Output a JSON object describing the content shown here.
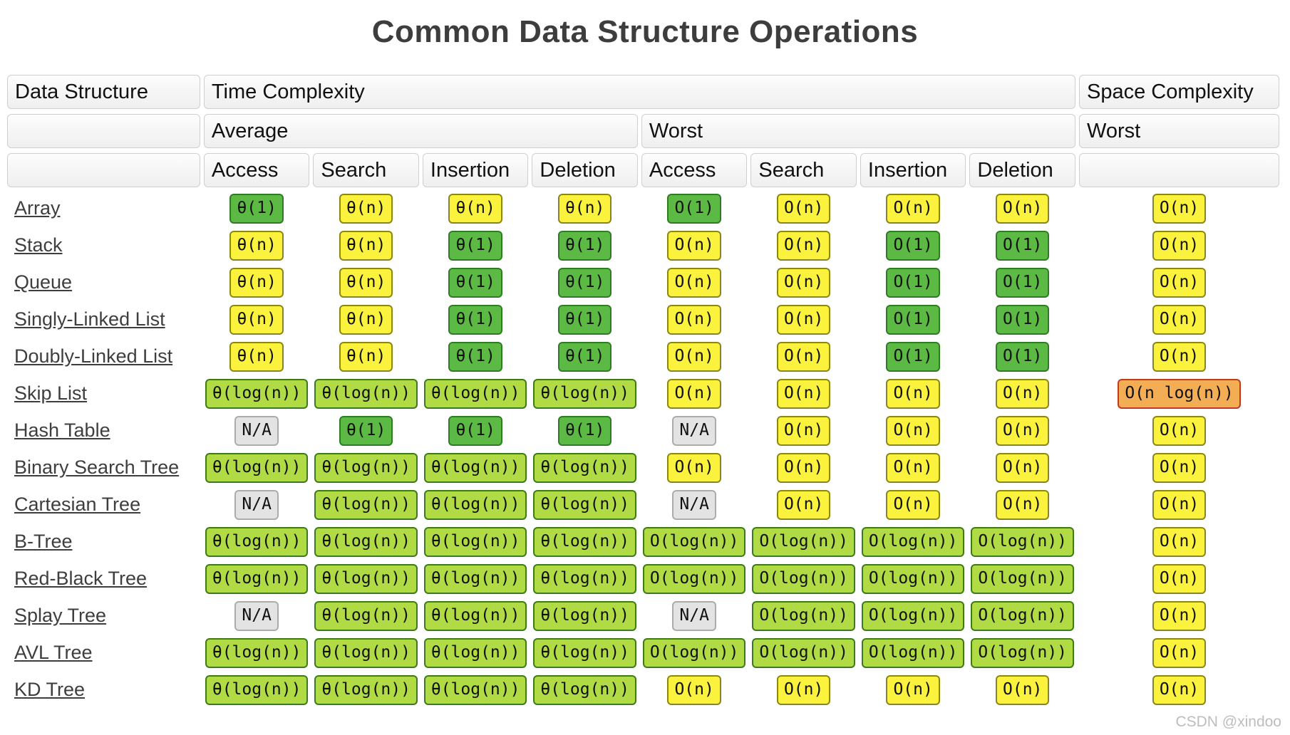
{
  "title": "Common Data Structure Operations",
  "watermark": "CSDN @xindoo",
  "legend_colors": {
    "excellent": "#5cba44",
    "good": "#b1db45",
    "fair": "#faf23c",
    "bad": "#f2ad55",
    "na": "#e3e3e3"
  },
  "table": {
    "header": {
      "data_structure": "Data Structure",
      "time_complexity": "Time Complexity",
      "space_complexity": "Space Complexity",
      "average": "Average",
      "worst": "Worst",
      "space_worst": "Worst",
      "operations": [
        "Access",
        "Search",
        "Insertion",
        "Deletion",
        "Access",
        "Search",
        "Insertion",
        "Deletion"
      ]
    },
    "rows": [
      {
        "name": "Array",
        "cells": [
          {
            "text": "θ(1)",
            "tone": "excellent"
          },
          {
            "text": "θ(n)",
            "tone": "fair"
          },
          {
            "text": "θ(n)",
            "tone": "fair"
          },
          {
            "text": "θ(n)",
            "tone": "fair"
          },
          {
            "text": "O(1)",
            "tone": "excellent"
          },
          {
            "text": "O(n)",
            "tone": "fair"
          },
          {
            "text": "O(n)",
            "tone": "fair"
          },
          {
            "text": "O(n)",
            "tone": "fair"
          },
          {
            "text": "O(n)",
            "tone": "fair"
          }
        ]
      },
      {
        "name": "Stack",
        "cells": [
          {
            "text": "θ(n)",
            "tone": "fair"
          },
          {
            "text": "θ(n)",
            "tone": "fair"
          },
          {
            "text": "θ(1)",
            "tone": "excellent"
          },
          {
            "text": "θ(1)",
            "tone": "excellent"
          },
          {
            "text": "O(n)",
            "tone": "fair"
          },
          {
            "text": "O(n)",
            "tone": "fair"
          },
          {
            "text": "O(1)",
            "tone": "excellent"
          },
          {
            "text": "O(1)",
            "tone": "excellent"
          },
          {
            "text": "O(n)",
            "tone": "fair"
          }
        ]
      },
      {
        "name": "Queue",
        "cells": [
          {
            "text": "θ(n)",
            "tone": "fair"
          },
          {
            "text": "θ(n)",
            "tone": "fair"
          },
          {
            "text": "θ(1)",
            "tone": "excellent"
          },
          {
            "text": "θ(1)",
            "tone": "excellent"
          },
          {
            "text": "O(n)",
            "tone": "fair"
          },
          {
            "text": "O(n)",
            "tone": "fair"
          },
          {
            "text": "O(1)",
            "tone": "excellent"
          },
          {
            "text": "O(1)",
            "tone": "excellent"
          },
          {
            "text": "O(n)",
            "tone": "fair"
          }
        ]
      },
      {
        "name": "Singly-Linked List",
        "cells": [
          {
            "text": "θ(n)",
            "tone": "fair"
          },
          {
            "text": "θ(n)",
            "tone": "fair"
          },
          {
            "text": "θ(1)",
            "tone": "excellent"
          },
          {
            "text": "θ(1)",
            "tone": "excellent"
          },
          {
            "text": "O(n)",
            "tone": "fair"
          },
          {
            "text": "O(n)",
            "tone": "fair"
          },
          {
            "text": "O(1)",
            "tone": "excellent"
          },
          {
            "text": "O(1)",
            "tone": "excellent"
          },
          {
            "text": "O(n)",
            "tone": "fair"
          }
        ]
      },
      {
        "name": "Doubly-Linked List",
        "cells": [
          {
            "text": "θ(n)",
            "tone": "fair"
          },
          {
            "text": "θ(n)",
            "tone": "fair"
          },
          {
            "text": "θ(1)",
            "tone": "excellent"
          },
          {
            "text": "θ(1)",
            "tone": "excellent"
          },
          {
            "text": "O(n)",
            "tone": "fair"
          },
          {
            "text": "O(n)",
            "tone": "fair"
          },
          {
            "text": "O(1)",
            "tone": "excellent"
          },
          {
            "text": "O(1)",
            "tone": "excellent"
          },
          {
            "text": "O(n)",
            "tone": "fair"
          }
        ]
      },
      {
        "name": "Skip List",
        "cells": [
          {
            "text": "θ(log(n))",
            "tone": "good"
          },
          {
            "text": "θ(log(n))",
            "tone": "good"
          },
          {
            "text": "θ(log(n))",
            "tone": "good"
          },
          {
            "text": "θ(log(n))",
            "tone": "good"
          },
          {
            "text": "O(n)",
            "tone": "fair"
          },
          {
            "text": "O(n)",
            "tone": "fair"
          },
          {
            "text": "O(n)",
            "tone": "fair"
          },
          {
            "text": "O(n)",
            "tone": "fair"
          },
          {
            "text": "O(n log(n))",
            "tone": "bad"
          }
        ]
      },
      {
        "name": "Hash Table",
        "cells": [
          {
            "text": "N/A",
            "tone": "na"
          },
          {
            "text": "θ(1)",
            "tone": "excellent"
          },
          {
            "text": "θ(1)",
            "tone": "excellent"
          },
          {
            "text": "θ(1)",
            "tone": "excellent"
          },
          {
            "text": "N/A",
            "tone": "na"
          },
          {
            "text": "O(n)",
            "tone": "fair"
          },
          {
            "text": "O(n)",
            "tone": "fair"
          },
          {
            "text": "O(n)",
            "tone": "fair"
          },
          {
            "text": "O(n)",
            "tone": "fair"
          }
        ]
      },
      {
        "name": "Binary Search Tree",
        "cells": [
          {
            "text": "θ(log(n))",
            "tone": "good"
          },
          {
            "text": "θ(log(n))",
            "tone": "good"
          },
          {
            "text": "θ(log(n))",
            "tone": "good"
          },
          {
            "text": "θ(log(n))",
            "tone": "good"
          },
          {
            "text": "O(n)",
            "tone": "fair"
          },
          {
            "text": "O(n)",
            "tone": "fair"
          },
          {
            "text": "O(n)",
            "tone": "fair"
          },
          {
            "text": "O(n)",
            "tone": "fair"
          },
          {
            "text": "O(n)",
            "tone": "fair"
          }
        ]
      },
      {
        "name": "Cartesian Tree",
        "cells": [
          {
            "text": "N/A",
            "tone": "na"
          },
          {
            "text": "θ(log(n))",
            "tone": "good"
          },
          {
            "text": "θ(log(n))",
            "tone": "good"
          },
          {
            "text": "θ(log(n))",
            "tone": "good"
          },
          {
            "text": "N/A",
            "tone": "na"
          },
          {
            "text": "O(n)",
            "tone": "fair"
          },
          {
            "text": "O(n)",
            "tone": "fair"
          },
          {
            "text": "O(n)",
            "tone": "fair"
          },
          {
            "text": "O(n)",
            "tone": "fair"
          }
        ]
      },
      {
        "name": "B-Tree",
        "cells": [
          {
            "text": "θ(log(n))",
            "tone": "good"
          },
          {
            "text": "θ(log(n))",
            "tone": "good"
          },
          {
            "text": "θ(log(n))",
            "tone": "good"
          },
          {
            "text": "θ(log(n))",
            "tone": "good"
          },
          {
            "text": "O(log(n))",
            "tone": "good"
          },
          {
            "text": "O(log(n))",
            "tone": "good"
          },
          {
            "text": "O(log(n))",
            "tone": "good"
          },
          {
            "text": "O(log(n))",
            "tone": "good"
          },
          {
            "text": "O(n)",
            "tone": "fair"
          }
        ]
      },
      {
        "name": "Red-Black Tree",
        "cells": [
          {
            "text": "θ(log(n))",
            "tone": "good"
          },
          {
            "text": "θ(log(n))",
            "tone": "good"
          },
          {
            "text": "θ(log(n))",
            "tone": "good"
          },
          {
            "text": "θ(log(n))",
            "tone": "good"
          },
          {
            "text": "O(log(n))",
            "tone": "good"
          },
          {
            "text": "O(log(n))",
            "tone": "good"
          },
          {
            "text": "O(log(n))",
            "tone": "good"
          },
          {
            "text": "O(log(n))",
            "tone": "good"
          },
          {
            "text": "O(n)",
            "tone": "fair"
          }
        ]
      },
      {
        "name": "Splay Tree",
        "cells": [
          {
            "text": "N/A",
            "tone": "na"
          },
          {
            "text": "θ(log(n))",
            "tone": "good"
          },
          {
            "text": "θ(log(n))",
            "tone": "good"
          },
          {
            "text": "θ(log(n))",
            "tone": "good"
          },
          {
            "text": "N/A",
            "tone": "na"
          },
          {
            "text": "O(log(n))",
            "tone": "good"
          },
          {
            "text": "O(log(n))",
            "tone": "good"
          },
          {
            "text": "O(log(n))",
            "tone": "good"
          },
          {
            "text": "O(n)",
            "tone": "fair"
          }
        ]
      },
      {
        "name": "AVL Tree",
        "cells": [
          {
            "text": "θ(log(n))",
            "tone": "good"
          },
          {
            "text": "θ(log(n))",
            "tone": "good"
          },
          {
            "text": "θ(log(n))",
            "tone": "good"
          },
          {
            "text": "θ(log(n))",
            "tone": "good"
          },
          {
            "text": "O(log(n))",
            "tone": "good"
          },
          {
            "text": "O(log(n))",
            "tone": "good"
          },
          {
            "text": "O(log(n))",
            "tone": "good"
          },
          {
            "text": "O(log(n))",
            "tone": "good"
          },
          {
            "text": "O(n)",
            "tone": "fair"
          }
        ]
      },
      {
        "name": "KD Tree",
        "cells": [
          {
            "text": "θ(log(n))",
            "tone": "good"
          },
          {
            "text": "θ(log(n))",
            "tone": "good"
          },
          {
            "text": "θ(log(n))",
            "tone": "good"
          },
          {
            "text": "θ(log(n))",
            "tone": "good"
          },
          {
            "text": "O(n)",
            "tone": "fair"
          },
          {
            "text": "O(n)",
            "tone": "fair"
          },
          {
            "text": "O(n)",
            "tone": "fair"
          },
          {
            "text": "O(n)",
            "tone": "fair"
          },
          {
            "text": "O(n)",
            "tone": "fair"
          }
        ]
      }
    ]
  }
}
